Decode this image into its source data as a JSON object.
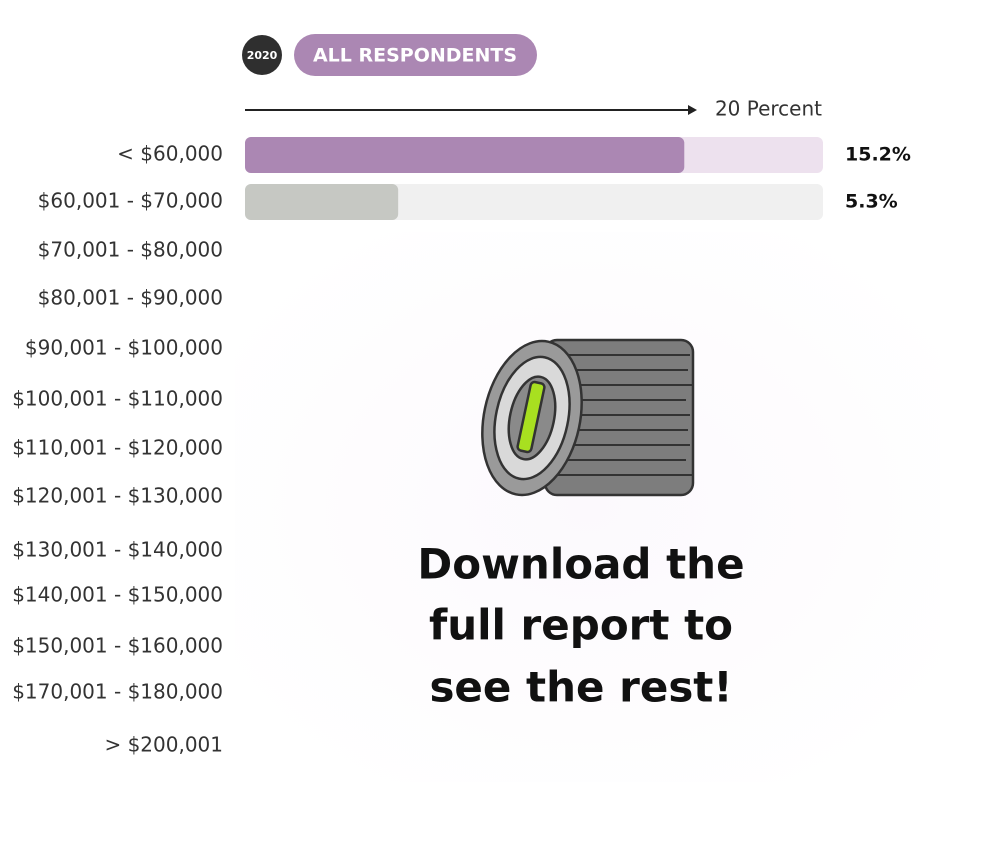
{
  "chart_data": {
    "type": "bar",
    "orientation": "horizontal",
    "badge": "2020",
    "filter": "ALL RESPONDENTS",
    "categories": [
      "< $60,000",
      "$60,001 - $70,000",
      "$70,001 - $80,000",
      "$80,001 - $90,000",
      "$90,001 - $100,000",
      "$100,001 - $110,000",
      "$110,001 - $120,000",
      "$120,001 - $130,000",
      "$130,001 - $140,000",
      "$140,001 - $150,000",
      "$150,001 - $160,000",
      "$170,001 - $180,000",
      "> $200,001"
    ],
    "values": [
      15.2,
      5.3,
      null,
      null,
      null,
      null,
      null,
      null,
      null,
      null,
      null,
      null,
      null
    ],
    "value_labels": [
      "15.2%",
      "5.3%",
      null,
      null,
      null,
      null,
      null,
      null,
      null,
      null,
      null,
      null,
      null
    ],
    "colors": [
      "#ab87b3",
      "#c6c8c3",
      null,
      null,
      null,
      null,
      null,
      null,
      null,
      null,
      null,
      null,
      null
    ],
    "track_colors": [
      "#ede1ee",
      "#f0f0f0",
      null,
      null,
      null,
      null,
      null,
      null,
      null,
      null,
      null,
      null,
      null
    ],
    "xlim": [
      0,
      20
    ],
    "xticks": [
      {
        "value": 20,
        "label": "20 Percent"
      }
    ],
    "overlay_lines": [
      "Download the",
      "full report to",
      "see the rest!"
    ]
  }
}
